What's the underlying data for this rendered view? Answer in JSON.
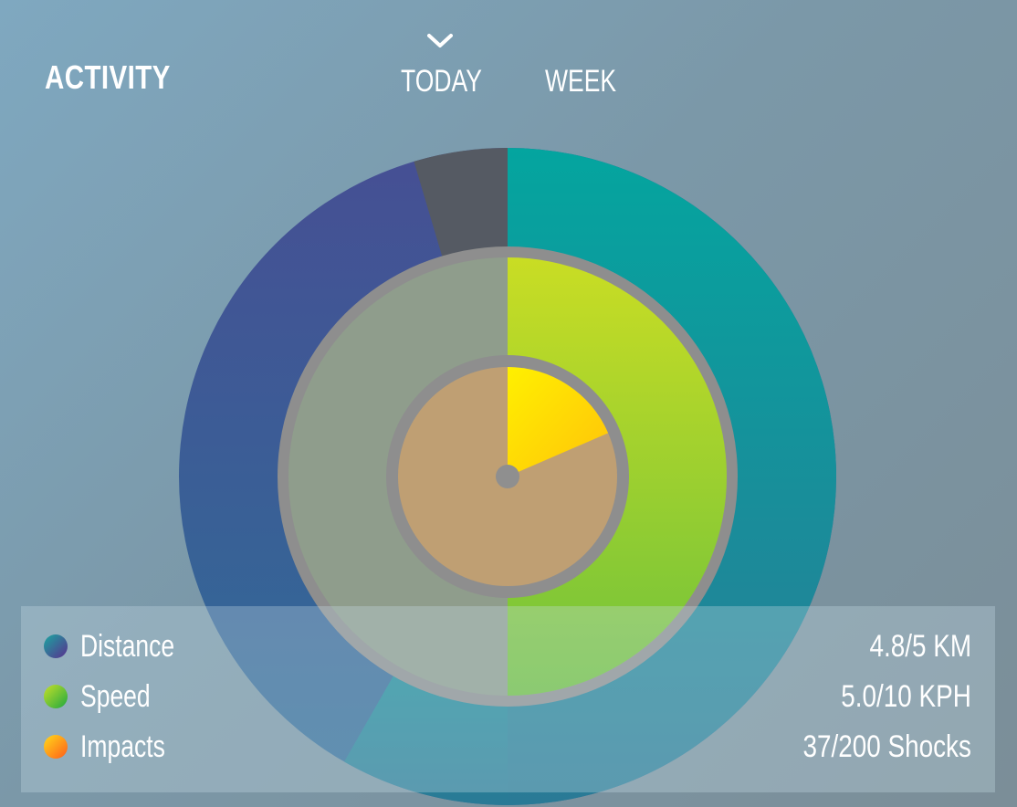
{
  "header": {
    "title": "ACTIVITY"
  },
  "tabs": [
    {
      "label": "TODAY",
      "selected": true
    },
    {
      "label": "WEEK",
      "selected": false
    }
  ],
  "legend": [
    {
      "label": "Distance",
      "value": "4.8/5 KM",
      "color_from": "#2a9a9a",
      "color_to": "#5a2f8f"
    },
    {
      "label": "Speed",
      "value": "5.0/10 KPH",
      "color_from": "#b9dd2a",
      "color_to": "#2fae3a"
    },
    {
      "label": "Impacts",
      "value": "37/200 Shocks",
      "color_from": "#ffd21a",
      "color_to": "#ff6a1a"
    }
  ],
  "chart_data": {
    "type": "radial-progress",
    "rings": [
      {
        "name": "Distance",
        "value": 4.8,
        "max": 5,
        "unit": "KM",
        "fill_color": "#0aa59f",
        "remainder_color": "#3f5a9a",
        "gap_color": "#555a63"
      },
      {
        "name": "Speed",
        "value": 5.0,
        "max": 10,
        "unit": "KPH",
        "fill_color": "#a7d52a",
        "remainder_color": "#8f9d8c"
      },
      {
        "name": "Impacts",
        "value": 37,
        "max": 200,
        "unit": "Shocks",
        "fill_color": "#ffd400",
        "remainder_color": "#bf9f73"
      }
    ],
    "distance_gap_fraction": 0.046
  }
}
